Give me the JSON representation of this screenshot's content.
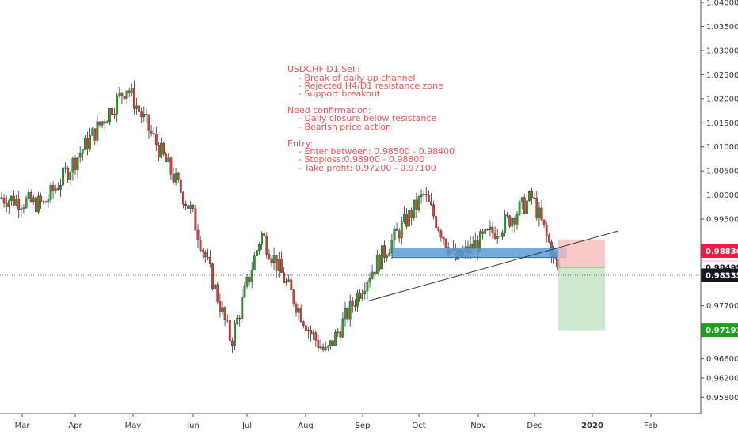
{
  "chart_data": {
    "type": "candlestick",
    "title": "",
    "symbol": "USDCHF",
    "timeframe": "D1",
    "ylim": [
      0.9546,
      1.0405
    ],
    "grid": false,
    "y_ticks": [
      "1.04000",
      "1.03500",
      "1.03000",
      "1.02500",
      "1.02000",
      "1.01500",
      "1.01000",
      "1.00500",
      "1.00000",
      "0.99500",
      "0.98836",
      "0.98499",
      "0.98335",
      "0.97700",
      "0.97191",
      "0.96600",
      "0.96200",
      "0.95800"
    ],
    "x_ticks": [
      "Mar",
      "Apr",
      "May",
      "Jun",
      "Jul",
      "Aug",
      "Sep",
      "Oct",
      "Nov",
      "Dec",
      "2020",
      "Feb"
    ],
    "price_tags": [
      {
        "label": "0.98836",
        "value": 0.98836,
        "color": "#ff1744",
        "text_color": "#ffffff"
      },
      {
        "label": "0.98499",
        "value": 0.98499,
        "color": "#ffffff",
        "text_color": "#131722"
      },
      {
        "label": "0.98335",
        "value": 0.98335,
        "color": "#131722",
        "text_color": "#ffffff"
      },
      {
        "label": "0.97191",
        "value": 0.97191,
        "color": "#1ba11b",
        "text_color": "#ffffff"
      }
    ],
    "key_points": [
      {
        "x": "Mar",
        "close": 0.9995
      },
      {
        "x": "Apr",
        "close": 0.998
      },
      {
        "x": "May",
        "close": 1.0225
      },
      {
        "x": "Jun",
        "close": 0.9965
      },
      {
        "x": "Jun",
        "close": 0.9695
      },
      {
        "x": "Jul",
        "close": 0.992
      },
      {
        "x": "Aug",
        "close": 0.9715
      },
      {
        "x": "Aug",
        "close": 0.967
      },
      {
        "x": "Sep",
        "close": 0.9825
      },
      {
        "x": "Oct",
        "close": 1.0
      },
      {
        "x": "Oct",
        "close": 0.9865
      },
      {
        "x": "Nov",
        "close": 0.9945
      },
      {
        "x": "Dec",
        "close": 0.9995
      },
      {
        "x": "Dec",
        "close": 0.98335
      }
    ],
    "current_price": 0.98335,
    "resistance_zone": [
      0.989,
      0.987
    ],
    "entry": 0.98499,
    "stop_loss": 0.98836,
    "take_profit": 0.97191,
    "channel_line": {
      "start": 0.978,
      "end": 0.9925
    }
  },
  "annotation": [
    "USDCHF D1 Sell:",
    "    - Break of daily up channel",
    "    - Rejected H4/D1 resistance zone",
    "    - Support breakout",
    "",
    "Need confirmation:",
    "    - Daily closure below resistance",
    "    - Bearish price action",
    "",
    "Entry:",
    "    - Enter between: 0.98500 - 0.98400",
    "    - Stoploss:0.98900 - 0.98800",
    "    - Take profit: 0.97200 - 0.97100"
  ],
  "colors": {
    "up": "#26a626",
    "down": "#e53935",
    "zone": "#5b9bd5",
    "risk": "#f8bbbb",
    "reward": "#c8e6c9",
    "note": "#ef5350"
  }
}
